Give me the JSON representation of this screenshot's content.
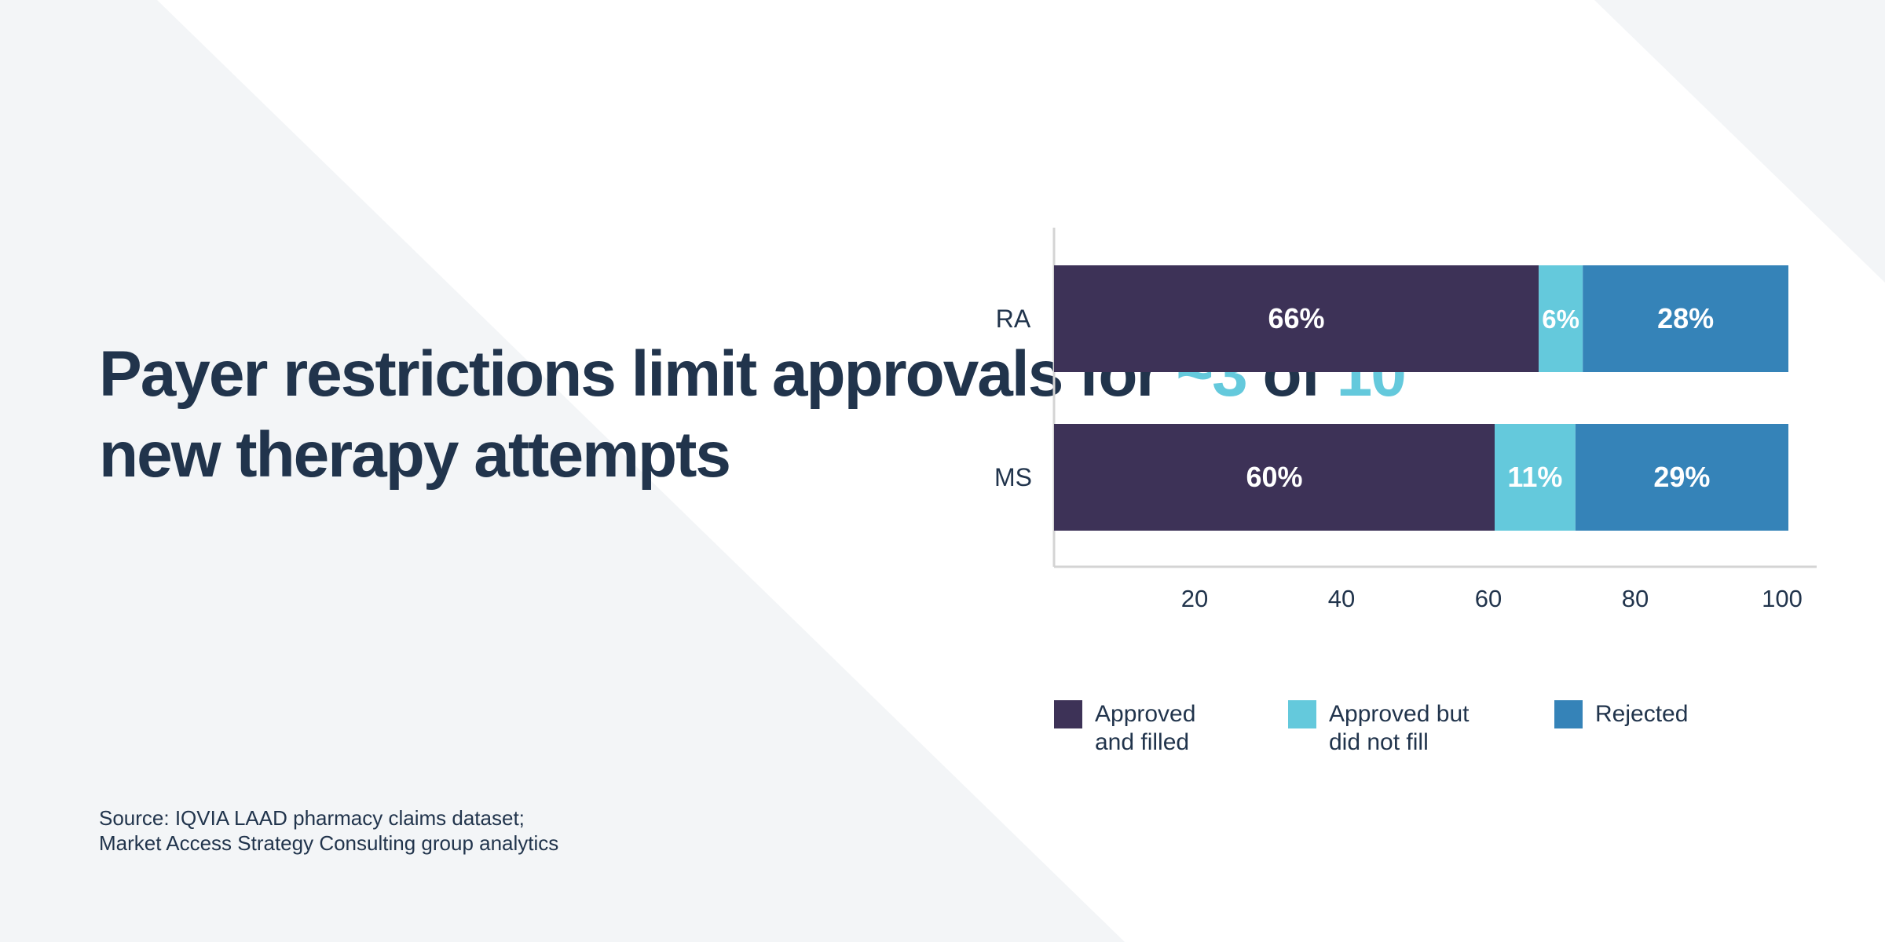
{
  "title": {
    "part1": "Payer restrictions limit approvals for ",
    "highlight1": "~3",
    "part2": " of ",
    "highlight2": "10",
    "part3": " new therapy attempts"
  },
  "source": {
    "line1": "Source: IQVIA LAAD pharmacy claims dataset;",
    "line2": "Market Access Strategy Consulting group analytics"
  },
  "colors": {
    "text": "#21344c",
    "accent": "#64c9dc",
    "background": "#f3f5f7"
  },
  "chart_data": {
    "type": "bar",
    "orientation": "horizontal",
    "stacked": true,
    "categories": [
      "RA",
      "MS"
    ],
    "series": [
      {
        "name": "Approved and filled",
        "values": [
          66,
          60
        ],
        "labels": [
          "66%",
          "60%"
        ],
        "color": "#3d3257"
      },
      {
        "name": "Approved but did not fill",
        "values": [
          6,
          11
        ],
        "labels": [
          "6%",
          "11%"
        ],
        "color": "#64c9dc"
      },
      {
        "name": "Rejected",
        "values": [
          28,
          29
        ],
        "labels": [
          "28%",
          "29%"
        ],
        "color": "#3583b8"
      }
    ],
    "xticks": [
      "20",
      "40",
      "60",
      "80",
      "100"
    ],
    "xlim": [
      0,
      100
    ],
    "grid": false,
    "legend_position": "bottom"
  }
}
